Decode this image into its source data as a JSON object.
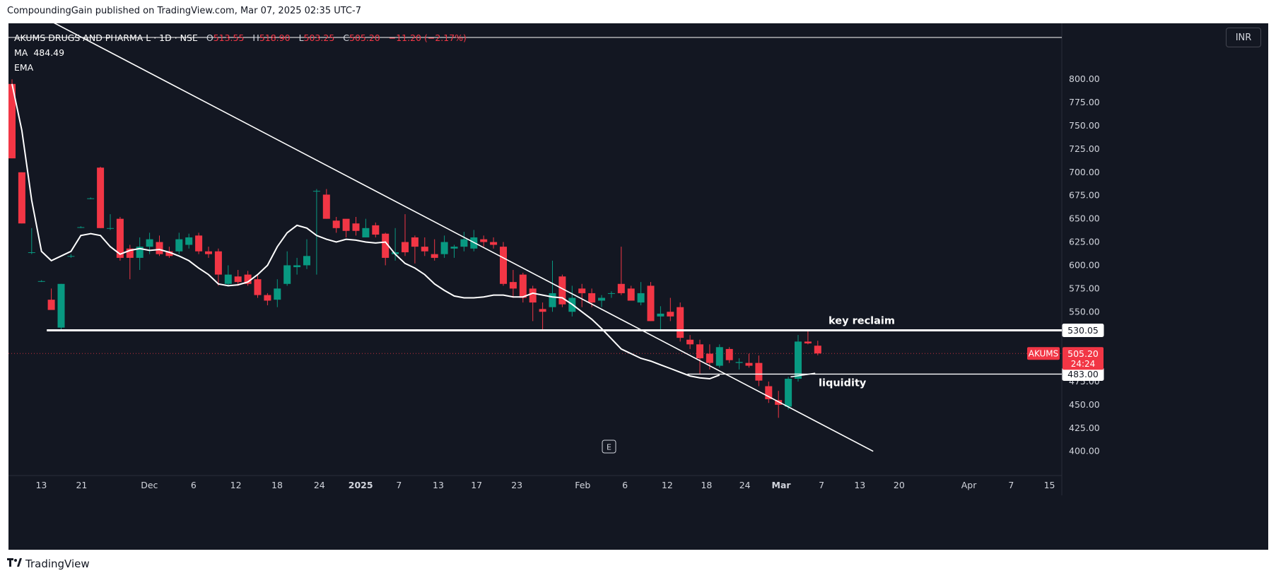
{
  "header": {
    "caption": "CompoundingGain published on TradingView.com, Mar 07, 2025 02:35 UTC-7"
  },
  "legend": {
    "title": "AKUMS DRUGS AND PHARMA L · 1D · NSE",
    "o_label": "O",
    "o_value": "513.55",
    "h_label": "H",
    "h_value": "518.90",
    "l_label": "L",
    "l_value": "503.25",
    "c_label": "C",
    "c_value": "505.20",
    "change": "−11.20 (−2.17%)",
    "ma_label": "MA",
    "ma_value": "484.49",
    "ema_label": "EMA"
  },
  "currency_button": "INR",
  "footer": {
    "brand": "TradingView"
  },
  "colors": {
    "bg": "#131722",
    "up": "#089981",
    "down": "#f23645",
    "line": "#ffffff",
    "axis": "#d1d4dc"
  },
  "chart_data": {
    "type": "candlestick",
    "ylim": [
      380,
      845
    ],
    "y_ticks": [
      "800.00",
      "775.00",
      "750.00",
      "725.00",
      "700.00",
      "675.00",
      "650.00",
      "625.00",
      "600.00",
      "575.00",
      "550.00",
      "475.00",
      "450.00",
      "425.00",
      "400.00"
    ],
    "x_ticks": [
      "13",
      "21",
      "Dec",
      "6",
      "12",
      "18",
      "24",
      "2025",
      "7",
      "13",
      "17",
      "23",
      "Feb",
      "6",
      "12",
      "18",
      "24",
      "Mar",
      "7",
      "13",
      "20",
      "Apr",
      "7",
      "15"
    ],
    "x_ticks_bold": [
      "2025",
      "Mar"
    ],
    "candles": [
      {
        "o": 795,
        "h": 800,
        "l": 715,
        "c": 715
      },
      {
        "o": 700,
        "h": 700,
        "l": 645,
        "c": 645
      },
      {
        "o": 614,
        "h": 640,
        "l": 612,
        "c": 614
      },
      {
        "o": 583,
        "h": 584,
        "l": 582,
        "c": 583
      },
      {
        "o": 563,
        "h": 575,
        "l": 555,
        "c": 552
      },
      {
        "o": 533,
        "h": 580,
        "l": 530,
        "c": 580
      },
      {
        "o": 610,
        "h": 612,
        "l": 608,
        "c": 610
      },
      {
        "o": 641,
        "h": 642,
        "l": 640,
        "c": 641
      },
      {
        "o": 672,
        "h": 673,
        "l": 671,
        "c": 672
      },
      {
        "o": 705,
        "h": 706,
        "l": 640,
        "c": 640
      },
      {
        "o": 640,
        "h": 655,
        "l": 638,
        "c": 640
      },
      {
        "o": 650,
        "h": 652,
        "l": 605,
        "c": 608
      },
      {
        "o": 618,
        "h": 622,
        "l": 585,
        "c": 608
      },
      {
        "o": 608,
        "h": 630,
        "l": 595,
        "c": 620
      },
      {
        "o": 620,
        "h": 635,
        "l": 612,
        "c": 628
      },
      {
        "o": 625,
        "h": 632,
        "l": 610,
        "c": 612
      },
      {
        "o": 615,
        "h": 620,
        "l": 608,
        "c": 610
      },
      {
        "o": 615,
        "h": 635,
        "l": 612,
        "c": 628
      },
      {
        "o": 622,
        "h": 634,
        "l": 618,
        "c": 630
      },
      {
        "o": 632,
        "h": 635,
        "l": 612,
        "c": 615
      },
      {
        "o": 615,
        "h": 620,
        "l": 608,
        "c": 612
      },
      {
        "o": 615,
        "h": 618,
        "l": 578,
        "c": 590
      },
      {
        "o": 580,
        "h": 600,
        "l": 578,
        "c": 590
      },
      {
        "o": 588,
        "h": 595,
        "l": 578,
        "c": 582
      },
      {
        "o": 590,
        "h": 594,
        "l": 578,
        "c": 580
      },
      {
        "o": 585,
        "h": 590,
        "l": 565,
        "c": 568
      },
      {
        "o": 568,
        "h": 570,
        "l": 557,
        "c": 562
      },
      {
        "o": 563,
        "h": 585,
        "l": 555,
        "c": 575
      },
      {
        "o": 580,
        "h": 615,
        "l": 578,
        "c": 600
      },
      {
        "o": 598,
        "h": 608,
        "l": 590,
        "c": 600
      },
      {
        "o": 600,
        "h": 628,
        "l": 596,
        "c": 610
      },
      {
        "o": 680,
        "h": 682,
        "l": 590,
        "c": 680
      },
      {
        "o": 676,
        "h": 682,
        "l": 650,
        "c": 650
      },
      {
        "o": 648,
        "h": 652,
        "l": 635,
        "c": 640
      },
      {
        "o": 650,
        "h": 648,
        "l": 630,
        "c": 637
      },
      {
        "o": 645,
        "h": 652,
        "l": 632,
        "c": 637
      },
      {
        "o": 630,
        "h": 650,
        "l": 630,
        "c": 640
      },
      {
        "o": 643,
        "h": 646,
        "l": 630,
        "c": 633
      },
      {
        "o": 634,
        "h": 635,
        "l": 600,
        "c": 608
      },
      {
        "o": 612,
        "h": 640,
        "l": 605,
        "c": 614
      },
      {
        "o": 625,
        "h": 655,
        "l": 610,
        "c": 614
      },
      {
        "o": 630,
        "h": 632,
        "l": 602,
        "c": 620
      },
      {
        "o": 620,
        "h": 630,
        "l": 610,
        "c": 615
      },
      {
        "o": 612,
        "h": 628,
        "l": 605,
        "c": 608
      },
      {
        "o": 612,
        "h": 632,
        "l": 608,
        "c": 625
      },
      {
        "o": 618,
        "h": 622,
        "l": 608,
        "c": 620
      },
      {
        "o": 620,
        "h": 636,
        "l": 615,
        "c": 628
      },
      {
        "o": 618,
        "h": 638,
        "l": 615,
        "c": 630
      },
      {
        "o": 628,
        "h": 632,
        "l": 620,
        "c": 625
      },
      {
        "o": 625,
        "h": 630,
        "l": 618,
        "c": 622
      },
      {
        "o": 620,
        "h": 625,
        "l": 578,
        "c": 580
      },
      {
        "o": 582,
        "h": 595,
        "l": 565,
        "c": 575
      },
      {
        "o": 590,
        "h": 592,
        "l": 560,
        "c": 565
      },
      {
        "o": 575,
        "h": 578,
        "l": 540,
        "c": 560
      },
      {
        "o": 553,
        "h": 560,
        "l": 530,
        "c": 550
      },
      {
        "o": 555,
        "h": 605,
        "l": 550,
        "c": 570
      },
      {
        "o": 588,
        "h": 590,
        "l": 555,
        "c": 558
      },
      {
        "o": 550,
        "h": 578,
        "l": 545,
        "c": 565
      },
      {
        "o": 575,
        "h": 580,
        "l": 555,
        "c": 570
      },
      {
        "o": 570,
        "h": 575,
        "l": 555,
        "c": 560
      },
      {
        "o": 562,
        "h": 568,
        "l": 555,
        "c": 565
      },
      {
        "o": 570,
        "h": 572,
        "l": 565,
        "c": 570
      },
      {
        "o": 580,
        "h": 620,
        "l": 568,
        "c": 570
      },
      {
        "o": 575,
        "h": 578,
        "l": 565,
        "c": 562
      },
      {
        "o": 560,
        "h": 582,
        "l": 557,
        "c": 570
      },
      {
        "o": 578,
        "h": 582,
        "l": 540,
        "c": 540
      },
      {
        "o": 545,
        "h": 556,
        "l": 530,
        "c": 548
      },
      {
        "o": 550,
        "h": 565,
        "l": 540,
        "c": 545
      },
      {
        "o": 555,
        "h": 560,
        "l": 518,
        "c": 522
      },
      {
        "o": 520,
        "h": 525,
        "l": 510,
        "c": 515
      },
      {
        "o": 515,
        "h": 520,
        "l": 483,
        "c": 500
      },
      {
        "o": 505,
        "h": 515,
        "l": 488,
        "c": 495
      },
      {
        "o": 492,
        "h": 515,
        "l": 490,
        "c": 512
      },
      {
        "o": 510,
        "h": 512,
        "l": 495,
        "c": 498
      },
      {
        "o": 495,
        "h": 500,
        "l": 488,
        "c": 496
      },
      {
        "o": 495,
        "h": 505,
        "l": 490,
        "c": 492
      },
      {
        "o": 495,
        "h": 503,
        "l": 470,
        "c": 476
      },
      {
        "o": 470,
        "h": 475,
        "l": 452,
        "c": 456
      },
      {
        "o": 455,
        "h": 465,
        "l": 436,
        "c": 450
      },
      {
        "o": 448,
        "h": 480,
        "l": 445,
        "c": 478
      },
      {
        "o": 478,
        "h": 525,
        "l": 475,
        "c": 518
      },
      {
        "o": 518,
        "h": 530,
        "l": 515,
        "c": 516
      },
      {
        "o": 513.55,
        "h": 518.9,
        "l": 503.25,
        "c": 505.2
      }
    ],
    "ma": [
      795,
      745,
      670,
      615,
      605,
      610,
      615,
      632,
      634,
      632,
      620,
      612,
      616,
      618,
      616,
      617,
      614,
      610,
      605,
      597,
      590,
      580,
      578,
      579,
      582,
      590,
      600,
      620,
      635,
      643,
      640,
      632,
      628,
      625,
      628,
      627,
      625,
      624,
      625,
      612,
      602,
      597,
      590,
      580,
      573,
      567,
      565,
      565,
      566,
      568,
      568,
      566,
      566,
      570,
      568,
      566,
      565,
      558,
      550,
      542,
      532,
      521,
      510,
      505,
      500,
      497,
      493,
      489,
      485,
      481,
      479,
      478,
      482
    ],
    "ma_value": 484.49,
    "ema_value": null,
    "annotations": [
      {
        "text": "key reclaim",
        "price": 530.05
      },
      {
        "text": "liquidity",
        "price": 483.0
      }
    ],
    "price_labels": [
      {
        "text": "530.05",
        "style": "white"
      },
      {
        "text": "483.00",
        "style": "white"
      },
      {
        "text": "505.20",
        "style": "red"
      },
      {
        "text": "24:24",
        "style": "red"
      }
    ],
    "symbol_tag": "AKUMS",
    "last_price": 505.2,
    "key_level": 530.05,
    "liquidity_level": 483.0,
    "trendline": {
      "from": {
        "bar": 1.5,
        "price": 878
      },
      "to": {
        "bar": 88,
        "price": 400
      }
    },
    "event_marker": "E"
  }
}
